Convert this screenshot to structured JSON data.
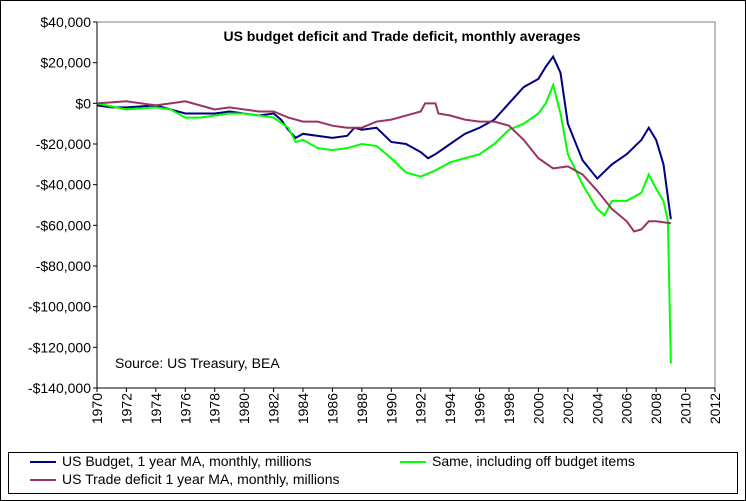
{
  "chart_data": {
    "type": "line",
    "title": "US budget deficit and Trade deficit, monthly averages",
    "annotation": "Source: US Treasury, BEA",
    "xlim": [
      1970,
      2012
    ],
    "xticks": [
      1970,
      1972,
      1974,
      1976,
      1978,
      1980,
      1982,
      1984,
      1986,
      1988,
      1990,
      1992,
      1994,
      1996,
      1998,
      2000,
      2002,
      2004,
      2006,
      2008,
      2010,
      2012
    ],
    "ylim": [
      -140000,
      40000
    ],
    "yticks": [
      {
        "value": -140000,
        "label": "-$140,000"
      },
      {
        "value": -120000,
        "label": "-$120,000"
      },
      {
        "value": -100000,
        "label": "-$100,000"
      },
      {
        "value": -80000,
        "label": "-$80,000"
      },
      {
        "value": -60000,
        "label": "-$60,000"
      },
      {
        "value": -40000,
        "label": "-$40,000"
      },
      {
        "value": -20000,
        "label": "-$20,000"
      },
      {
        "value": 0,
        "label": "$0"
      },
      {
        "value": 20000,
        "label": "$20,000"
      },
      {
        "value": 40000,
        "label": "$40,000"
      }
    ],
    "series": [
      {
        "name": "US Budget, 1 year MA, monthly, millions",
        "color": "#000080",
        "x": [
          1970,
          1971,
          1972,
          1973,
          1974,
          1975,
          1976,
          1977,
          1978,
          1979,
          1980,
          1981,
          1982,
          1982.5,
          1983,
          1983.5,
          1984,
          1985,
          1986,
          1987,
          1987.5,
          1988,
          1989,
          1990,
          1991,
          1992,
          1992.5,
          1993,
          1994,
          1995,
          1996,
          1997,
          1998,
          1999,
          2000,
          2000.5,
          2001,
          2001.5,
          2002,
          2003,
          2004,
          2005,
          2006,
          2007,
          2007.5,
          2008,
          2008.5,
          2009
        ],
        "values": [
          -1000,
          -2000,
          -2000,
          -1500,
          -1000,
          -3000,
          -5000,
          -5000,
          -5000,
          -4000,
          -5000,
          -6000,
          -5000,
          -8000,
          -13000,
          -17000,
          -15000,
          -16000,
          -17000,
          -16000,
          -12000,
          -13000,
          -12000,
          -19000,
          -20000,
          -24000,
          -27000,
          -25000,
          -20000,
          -15000,
          -12000,
          -8000,
          0,
          8000,
          12000,
          18000,
          23000,
          15000,
          -10000,
          -28000,
          -37000,
          -30000,
          -25000,
          -18000,
          -12000,
          -18000,
          -30000,
          -57000
        ]
      },
      {
        "name": "Same, including off budget items",
        "color": "#00ff00",
        "x": [
          1970,
          1972,
          1974,
          1975,
          1976,
          1977,
          1978,
          1979,
          1980,
          1981,
          1982,
          1983,
          1983.5,
          1984,
          1985,
          1986,
          1987,
          1988,
          1989,
          1990,
          1991,
          1992,
          1993,
          1994,
          1995,
          1996,
          1997,
          1998,
          1999,
          2000,
          2000.5,
          2001,
          2001.5,
          2002,
          2003,
          2004,
          2004.5,
          2005,
          2006,
          2007,
          2007.5,
          2008,
          2008.5,
          2008.8,
          2009
        ],
        "values": [
          0,
          -3000,
          -2000,
          -3000,
          -7000,
          -7000,
          -6000,
          -5000,
          -5000,
          -6000,
          -7000,
          -12000,
          -19000,
          -18000,
          -22000,
          -23000,
          -22000,
          -20000,
          -21000,
          -27000,
          -34000,
          -36000,
          -33000,
          -29000,
          -27000,
          -25000,
          -20000,
          -13000,
          -10000,
          -5000,
          0,
          9000,
          -5000,
          -25000,
          -40000,
          -52000,
          -55000,
          -48000,
          -48000,
          -44000,
          -35000,
          -42000,
          -48000,
          -58000,
          -128000
        ]
      },
      {
        "name": "US Trade deficit 1 year MA, monthly, millions",
        "color": "#993366",
        "x": [
          1970,
          1972,
          1974,
          1975,
          1976,
          1977,
          1978,
          1979,
          1980,
          1981,
          1982,
          1983,
          1984,
          1985,
          1986,
          1987,
          1988,
          1989,
          1990,
          1991,
          1992,
          1992.3,
          1993,
          1993.2,
          1994,
          1995,
          1996,
          1997,
          1998,
          1999,
          2000,
          2001,
          2002,
          2003,
          2004,
          2005,
          2006,
          2006.5,
          2007,
          2007.5,
          2008,
          2009
        ],
        "values": [
          0,
          1000,
          -1000,
          0,
          1000,
          -1000,
          -3000,
          -2000,
          -3000,
          -4000,
          -4000,
          -7000,
          -9000,
          -9000,
          -11000,
          -12000,
          -12000,
          -9000,
          -8000,
          -6000,
          -4000,
          0,
          0,
          -5000,
          -6000,
          -8000,
          -9000,
          -9000,
          -11000,
          -18000,
          -27000,
          -32000,
          -31000,
          -35000,
          -43000,
          -52000,
          -58000,
          -63000,
          -62000,
          -58000,
          -58000,
          -59000
        ]
      }
    ]
  }
}
